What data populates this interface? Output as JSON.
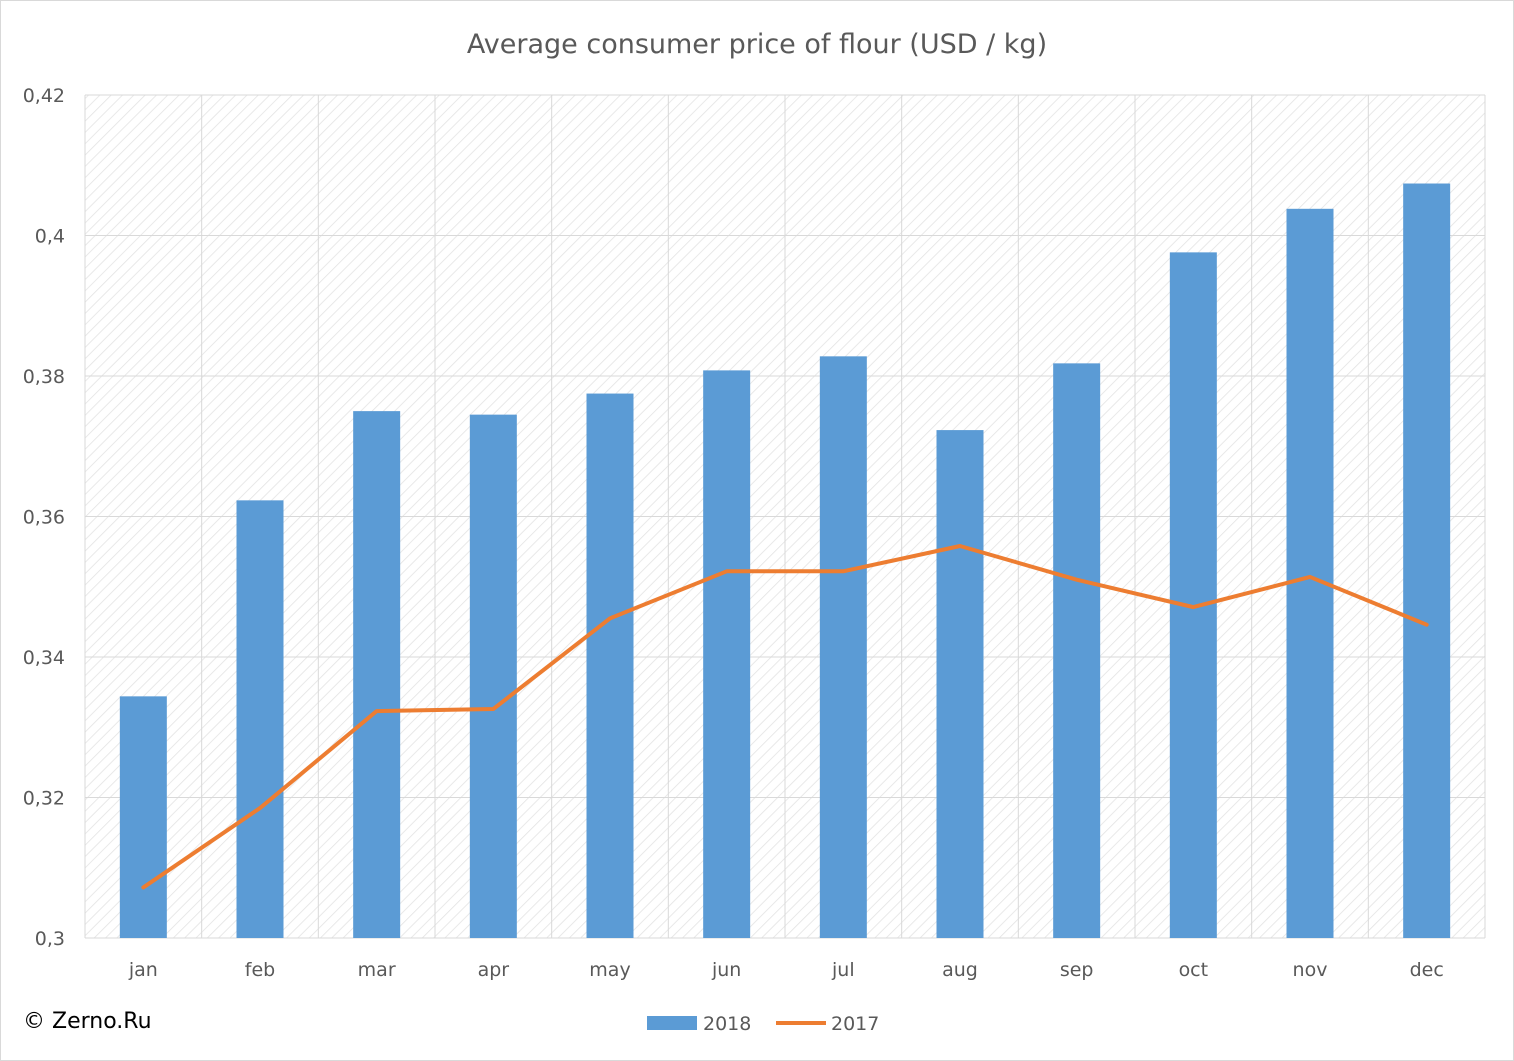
{
  "chart_data": {
    "type": "bar",
    "title": "Average consumer price of flour (USD / kg)",
    "categories": [
      "jan",
      "feb",
      "mar",
      "apr",
      "may",
      "jun",
      "jul",
      "aug",
      "sep",
      "oct",
      "nov",
      "dec"
    ],
    "series": [
      {
        "name": "2018",
        "type": "bar",
        "color": "#5b9bd5",
        "values": [
          0.3344,
          0.3623,
          0.375,
          0.3745,
          0.3775,
          0.3808,
          0.3828,
          0.3723,
          0.3818,
          0.3976,
          0.4038,
          0.4074
        ]
      },
      {
        "name": "2017",
        "type": "line",
        "color": "#ed7d31",
        "values": [
          0.3072,
          0.3185,
          0.3323,
          0.3326,
          0.3455,
          0.3522,
          0.3522,
          0.3558,
          0.351,
          0.3471,
          0.3514,
          0.3446
        ]
      }
    ],
    "ylim": [
      0.3,
      0.42
    ],
    "yticks": [
      "0,3",
      "0,32",
      "0,34",
      "0,36",
      "0,38",
      "0,4",
      "0,42"
    ],
    "xlabel": "",
    "ylabel": "",
    "grid": true,
    "legend_position": "bottom"
  },
  "copyright": "© Zerno.Ru"
}
